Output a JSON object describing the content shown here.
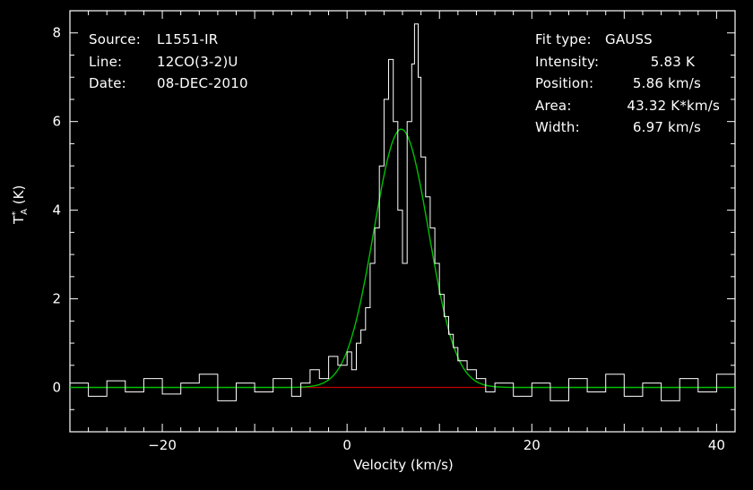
{
  "header": {
    "source_label": "Source:",
    "source_value": "L1551-IR",
    "line_label": "Line:",
    "line_value": "12CO(3-2)U",
    "date_label": "Date:",
    "date_value": "08-DEC-2010"
  },
  "fit": {
    "type_label": "Fit type:",
    "type_value": "GAUSS",
    "intensity_label": "Intensity:",
    "intensity_value": "5.83 K",
    "position_label": "Position:",
    "position_value": "5.86 km/s",
    "area_label": "Area:",
    "area_value": "43.32 K*km/s",
    "width_label": "Width:",
    "width_value": "6.97 km/s"
  },
  "colors": {
    "background": "#000000",
    "spectrum": "#ffffff",
    "gaussian_fit": "#00c000",
    "baseline": "#c00000",
    "axes": "#ffffff"
  },
  "chart_data": {
    "type": "line",
    "xlabel": "Velocity (km/s)",
    "ylabel_main": "T",
    "ylabel_sup": "*",
    "ylabel_sub": "A",
    "ylabel_unit": "(K)",
    "xlim": [
      -30,
      42
    ],
    "ylim": [
      -1,
      8.5
    ],
    "x_ticks": [
      -20,
      0,
      20,
      40
    ],
    "y_ticks": [
      0,
      2,
      4,
      6,
      8
    ],
    "grid": false,
    "series": [
      {
        "kind": "spectrum",
        "points": [
          [
            -30,
            0.1
          ],
          [
            -28,
            -0.2
          ],
          [
            -26,
            0.15
          ],
          [
            -24,
            -0.1
          ],
          [
            -22,
            0.2
          ],
          [
            -20,
            -0.15
          ],
          [
            -18,
            0.1
          ],
          [
            -16,
            0.3
          ],
          [
            -14,
            -0.3
          ],
          [
            -12,
            0.1
          ],
          [
            -10,
            -0.1
          ],
          [
            -8,
            0.2
          ],
          [
            -6,
            -0.2
          ],
          [
            -5,
            0.1
          ],
          [
            -4,
            0.4
          ],
          [
            -3,
            0.2
          ],
          [
            -2,
            0.7
          ],
          [
            -1,
            0.5
          ],
          [
            0,
            0.8
          ],
          [
            0.5,
            0.4
          ],
          [
            1,
            1.0
          ],
          [
            1.5,
            1.3
          ],
          [
            2,
            1.8
          ],
          [
            2.5,
            2.8
          ],
          [
            3,
            3.6
          ],
          [
            3.5,
            5.0
          ],
          [
            4,
            6.5
          ],
          [
            4.5,
            7.4
          ],
          [
            5,
            6.0
          ],
          [
            5.5,
            4.0
          ],
          [
            6,
            2.8
          ],
          [
            6.5,
            6.0
          ],
          [
            7,
            7.3
          ],
          [
            7.3,
            8.2
          ],
          [
            7.7,
            7.0
          ],
          [
            8,
            5.2
          ],
          [
            8.5,
            4.3
          ],
          [
            9,
            3.6
          ],
          [
            9.5,
            2.8
          ],
          [
            10,
            2.1
          ],
          [
            10.5,
            1.6
          ],
          [
            11,
            1.2
          ],
          [
            11.5,
            0.9
          ],
          [
            12,
            0.6
          ],
          [
            13,
            0.4
          ],
          [
            14,
            0.2
          ],
          [
            15,
            -0.1
          ],
          [
            16,
            0.1
          ],
          [
            18,
            -0.2
          ],
          [
            20,
            0.1
          ],
          [
            22,
            -0.3
          ],
          [
            24,
            0.2
          ],
          [
            26,
            -0.1
          ],
          [
            28,
            0.3
          ],
          [
            30,
            -0.2
          ],
          [
            32,
            0.1
          ],
          [
            34,
            -0.3
          ],
          [
            36,
            0.2
          ],
          [
            38,
            -0.1
          ],
          [
            40,
            0.3
          ],
          [
            42,
            0.0
          ]
        ]
      },
      {
        "kind": "gaussian_fit",
        "amplitude": 5.83,
        "center": 5.86,
        "fwhm": 6.97
      },
      {
        "kind": "baseline",
        "x_range": [
          -5,
          15
        ],
        "y": 0
      }
    ]
  }
}
